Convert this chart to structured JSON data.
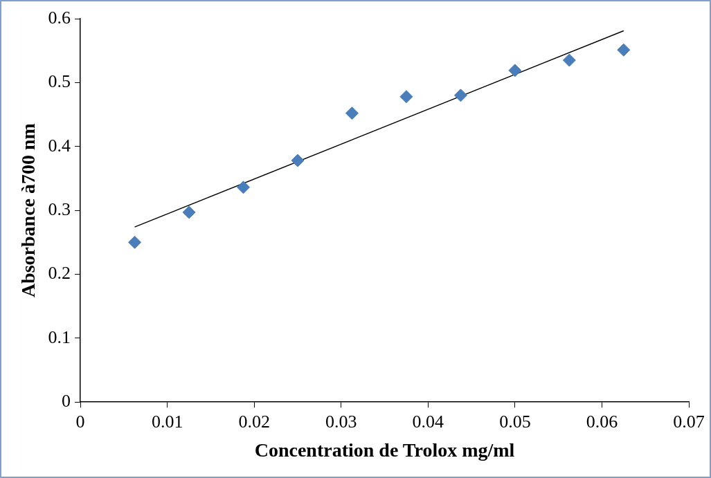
{
  "chart_data": {
    "type": "scatter",
    "xlabel": "Concentration de Trolox mg/ml",
    "ylabel": "Absorbance à700 nm",
    "x": [
      0.00625,
      0.0125,
      0.01875,
      0.025,
      0.03125,
      0.0375,
      0.04375,
      0.05,
      0.05625,
      0.0625
    ],
    "series": [
      {
        "color": "#4a7ebb",
        "marker": "diamond",
        "values": [
          0.25,
          0.297,
          0.336,
          0.378,
          0.452,
          0.478,
          0.48,
          0.519,
          0.535,
          0.551
        ]
      },
      {
        "type": "line",
        "color": "#000000",
        "marker": "none",
        "line_style": "solid",
        "x": [
          0.00625,
          0.0625
        ],
        "values": [
          0.274,
          0.581
        ]
      }
    ],
    "xlim": [
      0,
      0.07
    ],
    "xticks": [
      0,
      0.01,
      0.02,
      0.03,
      0.04,
      0.05,
      0.06,
      0.07
    ],
    "ylim": [
      0,
      0.6
    ],
    "yticks": [
      0,
      0.1,
      0.2,
      0.3,
      0.4,
      0.5,
      0.6
    ],
    "grid": false,
    "legend": false
  }
}
